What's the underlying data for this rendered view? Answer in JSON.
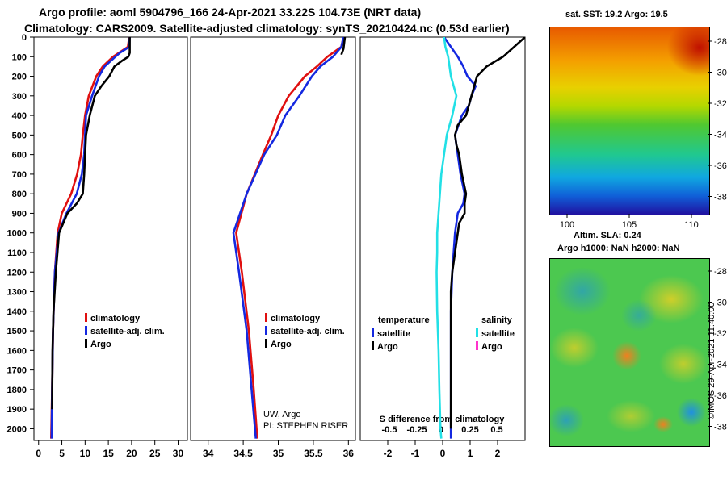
{
  "header": {
    "line1": "Argo profile: aoml 5904796_166 24-Apr-2021 33.22S 104.73E (NRT data)",
    "line2": "Climatology: CARS2009. Satellite-adjusted climatology: synTS_20210424.nc (0.53d earlier)"
  },
  "colors": {
    "climatology": "#e01010",
    "satellite": "#1428e0",
    "argo": "#000000",
    "sal_satellite": "#22e0e6",
    "sal_argo": "#ff33cc"
  },
  "chart_data": [
    {
      "type": "line",
      "panel": "temperature",
      "ylim": [
        2060,
        0
      ],
      "yinvert": true,
      "yticks": [
        0,
        100,
        200,
        300,
        400,
        500,
        600,
        700,
        800,
        900,
        1000,
        1100,
        1200,
        1300,
        1400,
        1500,
        1600,
        1700,
        1800,
        1900,
        2000
      ],
      "xlim": [
        -1,
        32
      ],
      "xticks": [
        0,
        5,
        10,
        15,
        20,
        25,
        30
      ],
      "legend": [
        "climatology",
        "satellite-adj. clim.",
        "Argo"
      ],
      "series": [
        {
          "name": "climatology",
          "color": "#e01010",
          "y": [
            0,
            50,
            100,
            150,
            200,
            300,
            400,
            500,
            600,
            700,
            800,
            900,
            1000,
            1200,
            1500,
            1800,
            2050
          ],
          "x": [
            19.5,
            19.2,
            16,
            13.8,
            12.4,
            10.8,
            10,
            9.5,
            9.1,
            8.3,
            7,
            5,
            4.1,
            3.5,
            3.1,
            2.9,
            2.7
          ]
        },
        {
          "name": "satellite-adj. clim.",
          "color": "#1428e0",
          "y": [
            0,
            50,
            80,
            100,
            150,
            200,
            300,
            400,
            500,
            600,
            700,
            800,
            900,
            1000,
            1200,
            1500,
            1800,
            2050
          ],
          "x": [
            19.6,
            19.5,
            17.5,
            16.5,
            14.2,
            13,
            11.5,
            10.2,
            10,
            9.8,
            9.3,
            8.2,
            6,
            4.3,
            3.5,
            3.1,
            2.9,
            2.8
          ]
        },
        {
          "name": "Argo",
          "color": "#000000",
          "y": [
            0,
            80,
            100,
            120,
            150,
            200,
            250,
            300,
            400,
            500,
            600,
            700,
            800,
            850,
            900,
            1000,
            1200,
            1400,
            1600,
            1900
          ],
          "x": [
            19.6,
            19.6,
            19.3,
            18,
            16.3,
            15.2,
            13.5,
            12.1,
            11,
            10.2,
            10,
            9.8,
            9.5,
            8.2,
            6.2,
            4.4,
            3.7,
            3.2,
            3.0,
            2.9
          ]
        }
      ]
    },
    {
      "type": "line",
      "panel": "salinity",
      "ylim": [
        2060,
        0
      ],
      "yinvert": true,
      "xlim": [
        33.75,
        36.1
      ],
      "xticks": [
        34,
        34.5,
        35,
        35.5,
        36
      ],
      "legend": [
        "climatology",
        "satellite-adj. clim.",
        "Argo"
      ],
      "annotations": [
        "UW, Argo",
        "PI: STEPHEN RISER"
      ],
      "series": [
        {
          "name": "climatology",
          "color": "#e01010",
          "y": [
            0,
            50,
            100,
            150,
            200,
            300,
            400,
            500,
            600,
            800,
            1000,
            1200,
            1500,
            1800,
            2050
          ],
          "x": [
            35.93,
            35.9,
            35.7,
            35.55,
            35.38,
            35.15,
            35.0,
            34.9,
            34.78,
            34.55,
            34.4,
            34.48,
            34.58,
            34.65,
            34.7
          ]
        },
        {
          "name": "satellite-adj. clim.",
          "color": "#1428e0",
          "y": [
            0,
            50,
            100,
            150,
            200,
            300,
            400,
            500,
            600,
            800,
            1000,
            1200,
            1500,
            1800,
            2050
          ],
          "x": [
            35.93,
            35.9,
            35.78,
            35.6,
            35.48,
            35.3,
            35.1,
            34.98,
            34.8,
            34.55,
            34.36,
            34.44,
            34.55,
            34.62,
            34.68
          ]
        },
        {
          "name": "Argo",
          "color": "#000000",
          "y": [
            0,
            60,
            90
          ],
          "x": [
            35.95,
            35.93,
            35.9
          ]
        }
      ]
    },
    {
      "type": "line",
      "panel": "difference",
      "ylim": [
        2060,
        0
      ],
      "yinvert": true,
      "xlim": [
        -3,
        3
      ],
      "xticks": [
        "-2",
        "-1",
        "0",
        "1",
        "2"
      ],
      "xticks_salinity": [
        "-0.5",
        "-0.25",
        "0",
        "0.25",
        "0.5"
      ],
      "xlabel": "S difference from climatology",
      "legend_left_title": "temperature",
      "legend_right_title": "salinity",
      "legend_left": [
        "satellite",
        "Argo"
      ],
      "legend_right": [
        "satellite",
        "Argo"
      ],
      "series": [
        {
          "name": "satellite (temperature)",
          "color": "#1428e0",
          "y": [
            0,
            100,
            150,
            200,
            250,
            300,
            350,
            400,
            500,
            600,
            700,
            800,
            850,
            900,
            1000,
            1100,
            1200,
            1400,
            1600,
            1800,
            2000,
            2050
          ],
          "x": [
            0.05,
            0.55,
            0.75,
            0.9,
            1.2,
            1.05,
            0.95,
            0.7,
            0.45,
            0.55,
            0.65,
            0.8,
            0.75,
            0.55,
            0.45,
            0.4,
            0.35,
            0.3,
            0.3,
            0.3,
            0.3,
            0.3
          ]
        },
        {
          "name": "Argo (temperature)",
          "color": "#000000",
          "y": [
            0,
            100,
            150,
            200,
            300,
            400,
            450,
            500,
            550,
            600,
            700,
            800,
            850,
            900,
            950,
            1000,
            1100,
            1200,
            1300,
            1400,
            1600,
            1800,
            2000
          ],
          "x": [
            3.0,
            2.2,
            1.6,
            1.25,
            1.05,
            0.85,
            0.55,
            0.45,
            0.5,
            0.6,
            0.7,
            0.85,
            0.8,
            0.8,
            0.6,
            0.55,
            0.45,
            0.35,
            0.3,
            0.3,
            0.3,
            0.3,
            0.3
          ]
        },
        {
          "name": "satellite (salinity)",
          "color": "#22e0e6",
          "y": [
            0,
            50,
            100,
            200,
            300,
            400,
            500,
            600,
            700,
            800,
            900,
            1000,
            1100,
            1200,
            1400,
            1600,
            1800,
            2000,
            2050
          ],
          "x": [
            0.05,
            0.1,
            0.2,
            0.3,
            0.5,
            0.35,
            0.15,
            0.05,
            -0.05,
            -0.1,
            -0.15,
            -0.2,
            -0.2,
            -0.22,
            -0.2,
            -0.15,
            -0.12,
            -0.08,
            -0.05
          ]
        }
      ]
    }
  ],
  "maps": {
    "sst_title": "sat. SST: 19.2 Argo: 19.5",
    "sst_lat_ticks": [
      "-28",
      "-30",
      "-32",
      "-34",
      "-36",
      "-38"
    ],
    "sst_lon_ticks": [
      "100",
      "105",
      "110"
    ],
    "sla_title1": "Altim. SLA: 0.24",
    "sla_title2": "Argo h1000: NaN h2000: NaN",
    "sla_lat_ticks": [
      "-28",
      "-30",
      "-32",
      "-34",
      "-36",
      "-38"
    ]
  },
  "credit": "©IMOS 29-Apr-2021 11:40:00"
}
